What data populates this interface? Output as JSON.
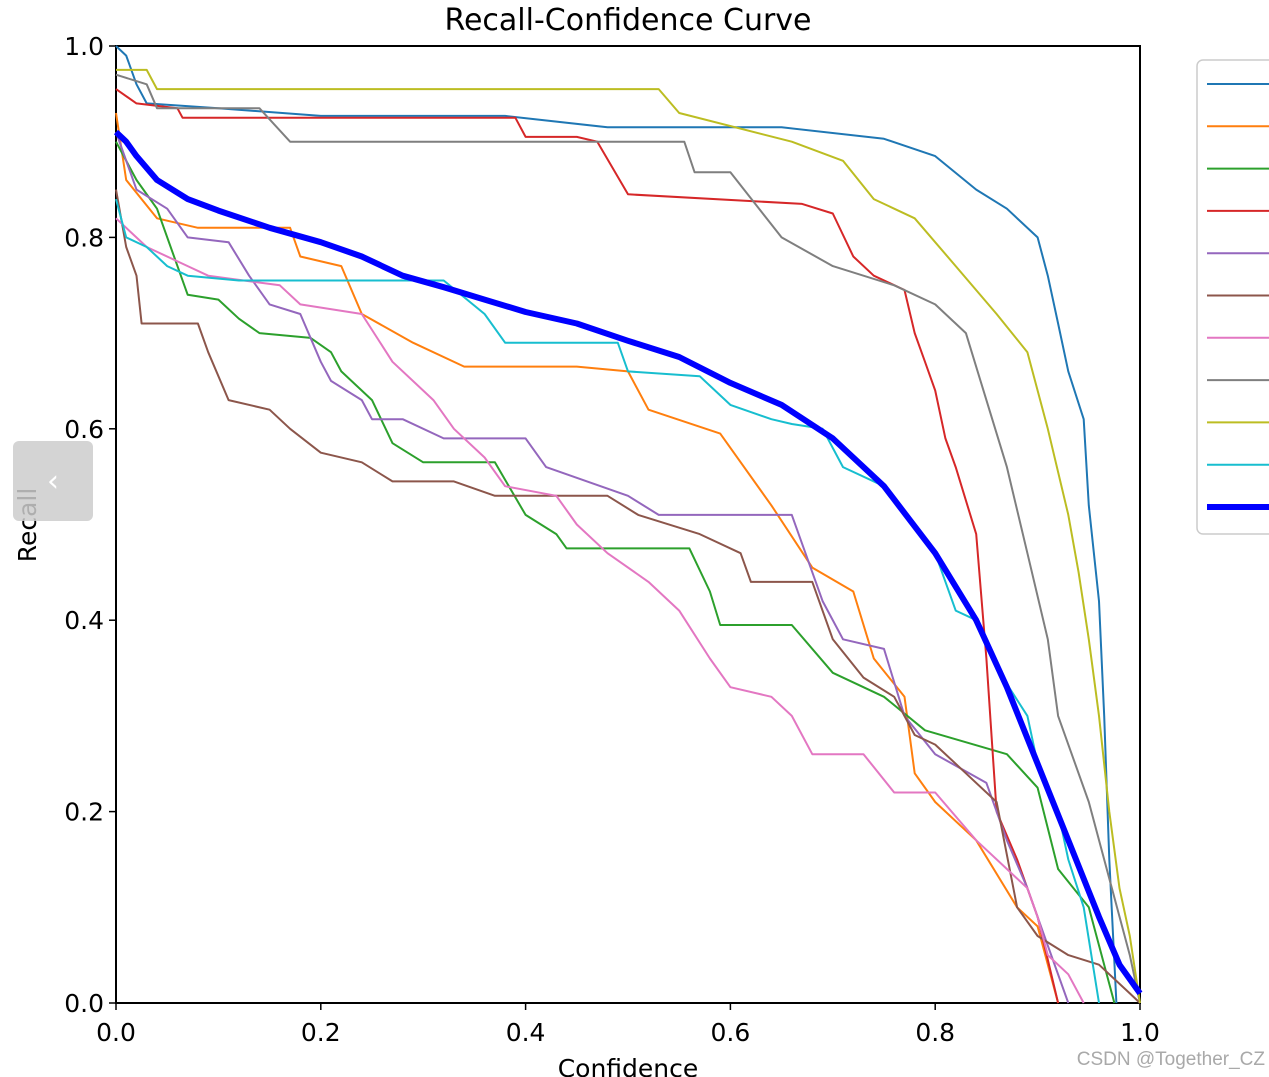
{
  "chart_data": {
    "type": "line",
    "title": "Recall-Confidence Curve",
    "xlabel": "Confidence",
    "ylabel": "Recall",
    "xlim": [
      0,
      1
    ],
    "ylim": [
      0,
      1
    ],
    "xticks": [
      "0.0",
      "0.2",
      "0.4",
      "0.6",
      "0.8",
      "1.0"
    ],
    "yticks": [
      "0.0",
      "0.2",
      "0.4",
      "0.6",
      "0.8",
      "1.0"
    ],
    "grid": false,
    "legend_position": "right (clipped)",
    "series": [
      {
        "name": "",
        "color": "#1f77b4",
        "width": 2,
        "points": [
          [
            0,
            1.0
          ],
          [
            0.01,
            0.99
          ],
          [
            0.02,
            0.96
          ],
          [
            0.03,
            0.94
          ],
          [
            0.1,
            0.935
          ],
          [
            0.2,
            0.927
          ],
          [
            0.38,
            0.927
          ],
          [
            0.48,
            0.915
          ],
          [
            0.55,
            0.915
          ],
          [
            0.65,
            0.915
          ],
          [
            0.75,
            0.903
          ],
          [
            0.8,
            0.885
          ],
          [
            0.84,
            0.85
          ],
          [
            0.87,
            0.83
          ],
          [
            0.9,
            0.8
          ],
          [
            0.91,
            0.76
          ],
          [
            0.92,
            0.71
          ],
          [
            0.93,
            0.66
          ],
          [
            0.945,
            0.61
          ],
          [
            0.95,
            0.52
          ],
          [
            0.96,
            0.42
          ],
          [
            0.965,
            0.3
          ],
          [
            0.97,
            0.15
          ],
          [
            0.977,
            0.0
          ]
        ]
      },
      {
        "name": "",
        "color": "#ff7f0e",
        "width": 2,
        "points": [
          [
            0,
            0.93
          ],
          [
            0.01,
            0.86
          ],
          [
            0.04,
            0.82
          ],
          [
            0.08,
            0.81
          ],
          [
            0.17,
            0.81
          ],
          [
            0.18,
            0.78
          ],
          [
            0.22,
            0.77
          ],
          [
            0.24,
            0.72
          ],
          [
            0.29,
            0.69
          ],
          [
            0.34,
            0.665
          ],
          [
            0.45,
            0.665
          ],
          [
            0.5,
            0.66
          ],
          [
            0.52,
            0.62
          ],
          [
            0.59,
            0.595
          ],
          [
            0.64,
            0.52
          ],
          [
            0.68,
            0.455
          ],
          [
            0.72,
            0.43
          ],
          [
            0.74,
            0.36
          ],
          [
            0.77,
            0.32
          ],
          [
            0.78,
            0.24
          ],
          [
            0.8,
            0.21
          ],
          [
            0.84,
            0.17
          ],
          [
            0.88,
            0.1
          ],
          [
            0.9,
            0.08
          ],
          [
            0.92,
            0.0
          ]
        ]
      },
      {
        "name": "",
        "color": "#2ca02c",
        "width": 2,
        "points": [
          [
            0,
            0.9
          ],
          [
            0.02,
            0.86
          ],
          [
            0.04,
            0.83
          ],
          [
            0.07,
            0.74
          ],
          [
            0.1,
            0.735
          ],
          [
            0.12,
            0.715
          ],
          [
            0.14,
            0.7
          ],
          [
            0.19,
            0.695
          ],
          [
            0.21,
            0.68
          ],
          [
            0.22,
            0.66
          ],
          [
            0.25,
            0.63
          ],
          [
            0.27,
            0.585
          ],
          [
            0.3,
            0.565
          ],
          [
            0.37,
            0.565
          ],
          [
            0.4,
            0.51
          ],
          [
            0.43,
            0.49
          ],
          [
            0.44,
            0.475
          ],
          [
            0.56,
            0.475
          ],
          [
            0.58,
            0.43
          ],
          [
            0.59,
            0.395
          ],
          [
            0.66,
            0.395
          ],
          [
            0.7,
            0.345
          ],
          [
            0.75,
            0.32
          ],
          [
            0.79,
            0.285
          ],
          [
            0.87,
            0.26
          ],
          [
            0.9,
            0.225
          ],
          [
            0.92,
            0.14
          ],
          [
            0.95,
            0.1
          ],
          [
            0.975,
            0.0
          ]
        ]
      },
      {
        "name": "",
        "color": "#d62728",
        "width": 2,
        "points": [
          [
            0,
            0.955
          ],
          [
            0.02,
            0.94
          ],
          [
            0.06,
            0.935
          ],
          [
            0.065,
            0.925
          ],
          [
            0.39,
            0.925
          ],
          [
            0.4,
            0.905
          ],
          [
            0.45,
            0.905
          ],
          [
            0.47,
            0.9
          ],
          [
            0.5,
            0.845
          ],
          [
            0.67,
            0.835
          ],
          [
            0.7,
            0.825
          ],
          [
            0.72,
            0.78
          ],
          [
            0.74,
            0.76
          ],
          [
            0.77,
            0.745
          ],
          [
            0.78,
            0.7
          ],
          [
            0.79,
            0.67
          ],
          [
            0.8,
            0.64
          ],
          [
            0.81,
            0.59
          ],
          [
            0.82,
            0.56
          ],
          [
            0.84,
            0.49
          ],
          [
            0.85,
            0.36
          ],
          [
            0.86,
            0.2
          ],
          [
            0.88,
            0.15
          ],
          [
            0.9,
            0.09
          ],
          [
            0.92,
            0.0
          ]
        ]
      },
      {
        "name": "",
        "color": "#9467bd",
        "width": 2,
        "points": [
          [
            0,
            0.91
          ],
          [
            0.02,
            0.85
          ],
          [
            0.05,
            0.83
          ],
          [
            0.07,
            0.8
          ],
          [
            0.11,
            0.795
          ],
          [
            0.13,
            0.76
          ],
          [
            0.15,
            0.73
          ],
          [
            0.18,
            0.72
          ],
          [
            0.2,
            0.67
          ],
          [
            0.21,
            0.65
          ],
          [
            0.24,
            0.63
          ],
          [
            0.25,
            0.61
          ],
          [
            0.28,
            0.61
          ],
          [
            0.32,
            0.59
          ],
          [
            0.4,
            0.59
          ],
          [
            0.42,
            0.56
          ],
          [
            0.5,
            0.53
          ],
          [
            0.53,
            0.51
          ],
          [
            0.66,
            0.51
          ],
          [
            0.69,
            0.42
          ],
          [
            0.71,
            0.38
          ],
          [
            0.75,
            0.37
          ],
          [
            0.77,
            0.3
          ],
          [
            0.8,
            0.26
          ],
          [
            0.85,
            0.23
          ],
          [
            0.87,
            0.17
          ],
          [
            0.89,
            0.12
          ],
          [
            0.91,
            0.06
          ],
          [
            0.93,
            0.0
          ]
        ]
      },
      {
        "name": "",
        "color": "#8c564b",
        "width": 2,
        "points": [
          [
            0,
            0.85
          ],
          [
            0.01,
            0.79
          ],
          [
            0.02,
            0.76
          ],
          [
            0.025,
            0.71
          ],
          [
            0.08,
            0.71
          ],
          [
            0.09,
            0.68
          ],
          [
            0.11,
            0.63
          ],
          [
            0.15,
            0.62
          ],
          [
            0.17,
            0.6
          ],
          [
            0.2,
            0.575
          ],
          [
            0.24,
            0.565
          ],
          [
            0.27,
            0.545
          ],
          [
            0.33,
            0.545
          ],
          [
            0.37,
            0.53
          ],
          [
            0.48,
            0.53
          ],
          [
            0.51,
            0.51
          ],
          [
            0.57,
            0.49
          ],
          [
            0.61,
            0.47
          ],
          [
            0.62,
            0.44
          ],
          [
            0.68,
            0.44
          ],
          [
            0.7,
            0.38
          ],
          [
            0.73,
            0.34
          ],
          [
            0.76,
            0.32
          ],
          [
            0.78,
            0.28
          ],
          [
            0.8,
            0.27
          ],
          [
            0.83,
            0.24
          ],
          [
            0.86,
            0.21
          ],
          [
            0.88,
            0.1
          ],
          [
            0.9,
            0.07
          ],
          [
            0.93,
            0.05
          ],
          [
            0.96,
            0.04
          ],
          [
            0.99,
            0.01
          ],
          [
            1.0,
            0.0
          ]
        ]
      },
      {
        "name": "",
        "color": "#e377c2",
        "width": 2,
        "points": [
          [
            0,
            0.82
          ],
          [
            0.03,
            0.79
          ],
          [
            0.07,
            0.77
          ],
          [
            0.09,
            0.76
          ],
          [
            0.16,
            0.75
          ],
          [
            0.18,
            0.73
          ],
          [
            0.24,
            0.72
          ],
          [
            0.27,
            0.67
          ],
          [
            0.31,
            0.63
          ],
          [
            0.33,
            0.6
          ],
          [
            0.36,
            0.57
          ],
          [
            0.38,
            0.54
          ],
          [
            0.43,
            0.53
          ],
          [
            0.45,
            0.5
          ],
          [
            0.48,
            0.47
          ],
          [
            0.52,
            0.44
          ],
          [
            0.55,
            0.41
          ],
          [
            0.58,
            0.36
          ],
          [
            0.6,
            0.33
          ],
          [
            0.64,
            0.32
          ],
          [
            0.66,
            0.3
          ],
          [
            0.68,
            0.26
          ],
          [
            0.73,
            0.26
          ],
          [
            0.76,
            0.22
          ],
          [
            0.8,
            0.22
          ],
          [
            0.84,
            0.17
          ],
          [
            0.87,
            0.14
          ],
          [
            0.89,
            0.12
          ],
          [
            0.9,
            0.09
          ],
          [
            0.91,
            0.05
          ],
          [
            0.93,
            0.03
          ],
          [
            0.945,
            0.0
          ]
        ]
      },
      {
        "name": "",
        "color": "#7f7f7f",
        "width": 2,
        "points": [
          [
            0,
            0.97
          ],
          [
            0.03,
            0.96
          ],
          [
            0.04,
            0.935
          ],
          [
            0.14,
            0.935
          ],
          [
            0.17,
            0.9
          ],
          [
            0.555,
            0.9
          ],
          [
            0.565,
            0.868
          ],
          [
            0.6,
            0.868
          ],
          [
            0.65,
            0.8
          ],
          [
            0.7,
            0.77
          ],
          [
            0.76,
            0.75
          ],
          [
            0.8,
            0.73
          ],
          [
            0.83,
            0.7
          ],
          [
            0.85,
            0.63
          ],
          [
            0.87,
            0.56
          ],
          [
            0.89,
            0.47
          ],
          [
            0.91,
            0.38
          ],
          [
            0.92,
            0.3
          ],
          [
            0.95,
            0.21
          ],
          [
            0.97,
            0.13
          ],
          [
            0.99,
            0.05
          ],
          [
            1.0,
            0.0
          ]
        ]
      },
      {
        "name": "",
        "color": "#bcbd22",
        "width": 2,
        "points": [
          [
            0,
            0.975
          ],
          [
            0.03,
            0.975
          ],
          [
            0.04,
            0.955
          ],
          [
            0.53,
            0.955
          ],
          [
            0.55,
            0.93
          ],
          [
            0.66,
            0.9
          ],
          [
            0.71,
            0.88
          ],
          [
            0.74,
            0.84
          ],
          [
            0.78,
            0.82
          ],
          [
            0.82,
            0.77
          ],
          [
            0.86,
            0.72
          ],
          [
            0.89,
            0.68
          ],
          [
            0.91,
            0.6
          ],
          [
            0.93,
            0.51
          ],
          [
            0.94,
            0.45
          ],
          [
            0.95,
            0.38
          ],
          [
            0.96,
            0.3
          ],
          [
            0.97,
            0.2
          ],
          [
            0.98,
            0.12
          ],
          [
            0.99,
            0.07
          ],
          [
            1.0,
            0.0
          ]
        ]
      },
      {
        "name": "",
        "color": "#17becf",
        "width": 2,
        "points": [
          [
            0,
            0.84
          ],
          [
            0.01,
            0.8
          ],
          [
            0.03,
            0.79
          ],
          [
            0.05,
            0.77
          ],
          [
            0.07,
            0.76
          ],
          [
            0.12,
            0.755
          ],
          [
            0.32,
            0.755
          ],
          [
            0.36,
            0.72
          ],
          [
            0.38,
            0.69
          ],
          [
            0.49,
            0.69
          ],
          [
            0.5,
            0.66
          ],
          [
            0.57,
            0.655
          ],
          [
            0.6,
            0.625
          ],
          [
            0.64,
            0.61
          ],
          [
            0.66,
            0.605
          ],
          [
            0.69,
            0.6
          ],
          [
            0.71,
            0.56
          ],
          [
            0.75,
            0.54
          ],
          [
            0.8,
            0.47
          ],
          [
            0.82,
            0.41
          ],
          [
            0.84,
            0.4
          ],
          [
            0.86,
            0.35
          ],
          [
            0.89,
            0.3
          ],
          [
            0.9,
            0.25
          ],
          [
            0.92,
            0.2
          ],
          [
            0.93,
            0.15
          ],
          [
            0.945,
            0.1
          ],
          [
            0.96,
            0.0
          ]
        ]
      },
      {
        "name": "",
        "color": "#0000ff",
        "width": 6,
        "points": [
          [
            0,
            0.91
          ],
          [
            0.01,
            0.9
          ],
          [
            0.02,
            0.885
          ],
          [
            0.04,
            0.86
          ],
          [
            0.07,
            0.84
          ],
          [
            0.1,
            0.828
          ],
          [
            0.15,
            0.81
          ],
          [
            0.2,
            0.795
          ],
          [
            0.24,
            0.78
          ],
          [
            0.28,
            0.76
          ],
          [
            0.32,
            0.748
          ],
          [
            0.36,
            0.735
          ],
          [
            0.4,
            0.722
          ],
          [
            0.45,
            0.71
          ],
          [
            0.5,
            0.692
          ],
          [
            0.55,
            0.675
          ],
          [
            0.6,
            0.648
          ],
          [
            0.65,
            0.625
          ],
          [
            0.7,
            0.59
          ],
          [
            0.75,
            0.54
          ],
          [
            0.8,
            0.47
          ],
          [
            0.84,
            0.4
          ],
          [
            0.87,
            0.33
          ],
          [
            0.9,
            0.25
          ],
          [
            0.93,
            0.17
          ],
          [
            0.96,
            0.09
          ],
          [
            0.98,
            0.04
          ],
          [
            1.0,
            0.01
          ]
        ]
      }
    ]
  },
  "watermark": "CSDN @Together_CZ",
  "nav": {
    "prev_glyph": "‹"
  }
}
